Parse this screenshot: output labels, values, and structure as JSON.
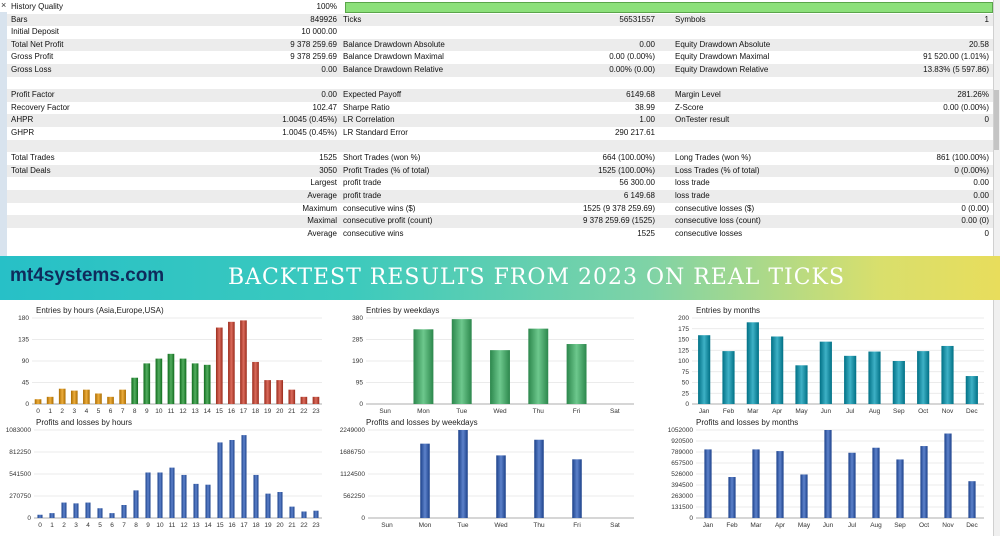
{
  "report": {
    "close_glyph": "×",
    "history_quality": {
      "label": "History Quality",
      "value": "100%"
    },
    "rows": [
      {
        "c1l": "Bars",
        "c1v": "849926",
        "c2l": "Ticks",
        "c2v": "56531557",
        "c3l": "Symbols",
        "c3v": "1"
      },
      {
        "c1l": "Initial Deposit",
        "c1v": "10 000.00",
        "c2l": "",
        "c2v": "",
        "c3l": "",
        "c3v": ""
      },
      {
        "c1l": "Total Net Profit",
        "c1v": "9 378 259.69",
        "c2l": "Balance Drawdown Absolute",
        "c2v": "0.00",
        "c3l": "Equity Drawdown Absolute",
        "c3v": "20.58"
      },
      {
        "c1l": "Gross Profit",
        "c1v": "9 378 259.69",
        "c2l": "Balance Drawdown Maximal",
        "c2v": "0.00 (0.00%)",
        "c3l": "Equity Drawdown Maximal",
        "c3v": "91 520.00 (1.01%)"
      },
      {
        "c1l": "Gross Loss",
        "c1v": "0.00",
        "c2l": "Balance Drawdown Relative",
        "c2v": "0.00% (0.00)",
        "c3l": "Equity Drawdown Relative",
        "c3v": "13.83% (5 597.86)"
      },
      {
        "c1l": "",
        "c1v": "",
        "c2l": "",
        "c2v": "",
        "c3l": "",
        "c3v": ""
      },
      {
        "c1l": "Profit Factor",
        "c1v": "0.00",
        "c2l": "Expected Payoff",
        "c2v": "6149.68",
        "c3l": "Margin Level",
        "c3v": "281.26%"
      },
      {
        "c1l": "Recovery Factor",
        "c1v": "102.47",
        "c2l": "Sharpe Ratio",
        "c2v": "38.99",
        "c3l": "Z-Score",
        "c3v": "0.00 (0.00%)"
      },
      {
        "c1l": "AHPR",
        "c1v": "1.0045 (0.45%)",
        "c2l": "LR Correlation",
        "c2v": "1.00",
        "c3l": "OnTester result",
        "c3v": "0"
      },
      {
        "c1l": "GHPR",
        "c1v": "1.0045 (0.45%)",
        "c2l": "LR Standard Error",
        "c2v": "290 217.61",
        "c3l": "",
        "c3v": ""
      },
      {
        "c1l": "",
        "c1v": "",
        "c2l": "",
        "c2v": "",
        "c3l": "",
        "c3v": ""
      },
      {
        "c1l": "Total Trades",
        "c1v": "1525",
        "c2l": "Short Trades (won %)",
        "c2v": "664 (100.00%)",
        "c3l": "Long Trades (won %)",
        "c3v": "861 (100.00%)"
      },
      {
        "c1l": "Total Deals",
        "c1v": "3050",
        "c2l": "Profit Trades (% of total)",
        "c2v": "1525 (100.00%)",
        "c3l": "Loss Trades (% of total)",
        "c3v": "0 (0.00%)"
      },
      {
        "c1l": "",
        "c1v": "Largest",
        "c2l": "profit trade",
        "c2v": "56 300.00",
        "c3l": "loss trade",
        "c3v": "0.00"
      },
      {
        "c1l": "",
        "c1v": "Average",
        "c2l": "profit trade",
        "c2v": "6 149.68",
        "c3l": "loss trade",
        "c3v": "0.00"
      },
      {
        "c1l": "",
        "c1v": "Maximum",
        "c2l": "consecutive wins ($)",
        "c2v": "1525 (9 378 259.69)",
        "c3l": "consecutive losses ($)",
        "c3v": "0 (0.00)"
      },
      {
        "c1l": "",
        "c1v": "Maximal",
        "c2l": "consecutive profit (count)",
        "c2v": "9 378 259.69 (1525)",
        "c3l": "consecutive loss (count)",
        "c3v": "0.00 (0)"
      },
      {
        "c1l": "",
        "c1v": "Average",
        "c2l": "consecutive wins",
        "c2v": "1525",
        "c3l": "consecutive losses",
        "c3v": "0"
      }
    ]
  },
  "banner": {
    "brand": "mt4systems.com",
    "headline": "BACKTEST RESULTS FROM 2023 ON REAL TICKS"
  },
  "colors": {
    "orange": "#c98a1a",
    "green": "#2f8a3c",
    "red": "#b8493a",
    "teal": "#1b8ea3",
    "blue": "#3a5fa8",
    "weekday_green": "#4aa56a"
  },
  "chart_data": [
    {
      "type": "bar",
      "title": "Entries by hours (Asia,Europe,USA)",
      "categories": [
        "0",
        "1",
        "2",
        "3",
        "4",
        "5",
        "6",
        "7",
        "8",
        "9",
        "10",
        "11",
        "12",
        "13",
        "14",
        "15",
        "16",
        "17",
        "18",
        "19",
        "20",
        "21",
        "22",
        "23"
      ],
      "values": [
        10,
        15,
        32,
        28,
        30,
        22,
        15,
        30,
        55,
        85,
        95,
        105,
        95,
        85,
        82,
        160,
        172,
        175,
        88,
        50,
        50,
        30,
        15,
        15
      ],
      "series_colors": [
        "orange",
        "orange",
        "orange",
        "orange",
        "orange",
        "orange",
        "orange",
        "orange",
        "green",
        "green",
        "green",
        "green",
        "green",
        "green",
        "green",
        "red",
        "red",
        "red",
        "red",
        "red",
        "red",
        "red",
        "red",
        "red"
      ],
      "yticks": [
        "0",
        "45",
        "90",
        "135",
        "180"
      ],
      "ylim": [
        0,
        180
      ]
    },
    {
      "type": "bar",
      "title": "Entries by weekdays",
      "categories": [
        "Sun",
        "Mon",
        "Tue",
        "Wed",
        "Thu",
        "Fri",
        "Sat"
      ],
      "values": [
        0,
        330,
        375,
        238,
        333,
        265,
        0
      ],
      "yticks": [
        "0",
        "95",
        "190",
        "285",
        "380"
      ],
      "ylim": [
        0,
        380
      ]
    },
    {
      "type": "bar",
      "title": "Entries by months",
      "categories": [
        "Jan",
        "Feb",
        "Mar",
        "Apr",
        "May",
        "Jun",
        "Jul",
        "Aug",
        "Sep",
        "Oct",
        "Nov",
        "Dec"
      ],
      "values": [
        160,
        123,
        190,
        157,
        90,
        145,
        112,
        122,
        100,
        123,
        135,
        65
      ],
      "yticks": [
        "0",
        "25",
        "50",
        "75",
        "100",
        "125",
        "150",
        "175",
        "200"
      ],
      "ylim": [
        0,
        200
      ]
    },
    {
      "type": "bar",
      "title": "Profits and losses by hours",
      "categories": [
        "0",
        "1",
        "2",
        "3",
        "4",
        "5",
        "6",
        "7",
        "8",
        "9",
        "10",
        "11",
        "12",
        "13",
        "14",
        "15",
        "16",
        "17",
        "18",
        "19",
        "20",
        "21",
        "22",
        "23"
      ],
      "values": [
        40000,
        60000,
        190000,
        180000,
        190000,
        120000,
        60000,
        160000,
        340000,
        560000,
        560000,
        620000,
        530000,
        420000,
        410000,
        930000,
        960000,
        1020000,
        530000,
        300000,
        320000,
        140000,
        80000,
        90000
      ],
      "yticks": [
        "0",
        "270750",
        "541500",
        "812250",
        "1083000"
      ],
      "ylim": [
        0,
        1083000
      ]
    },
    {
      "type": "bar",
      "title": "Profits and losses by weekdays",
      "categories": [
        "Sun",
        "Mon",
        "Tue",
        "Wed",
        "Thu",
        "Fri",
        "Sat"
      ],
      "values": [
        0,
        1900000,
        2249000,
        1600000,
        2000000,
        1500000,
        0
      ],
      "yticks": [
        "0",
        "562250",
        "1124500",
        "1686750",
        "2249000"
      ],
      "ylim": [
        0,
        2249000
      ]
    },
    {
      "type": "bar",
      "title": "Profits and losses by months",
      "categories": [
        "Jan",
        "Feb",
        "Mar",
        "Apr",
        "May",
        "Jun",
        "Jul",
        "Aug",
        "Sep",
        "Oct",
        "Nov",
        "Dec"
      ],
      "values": [
        820000,
        490000,
        820000,
        800000,
        520000,
        1052000,
        780000,
        840000,
        700000,
        860000,
        1010000,
        440000
      ],
      "yticks": [
        "0",
        "131500",
        "263000",
        "394500",
        "526000",
        "657500",
        "789000",
        "920500",
        "1052000"
      ],
      "ylim": [
        0,
        1052000
      ]
    }
  ]
}
